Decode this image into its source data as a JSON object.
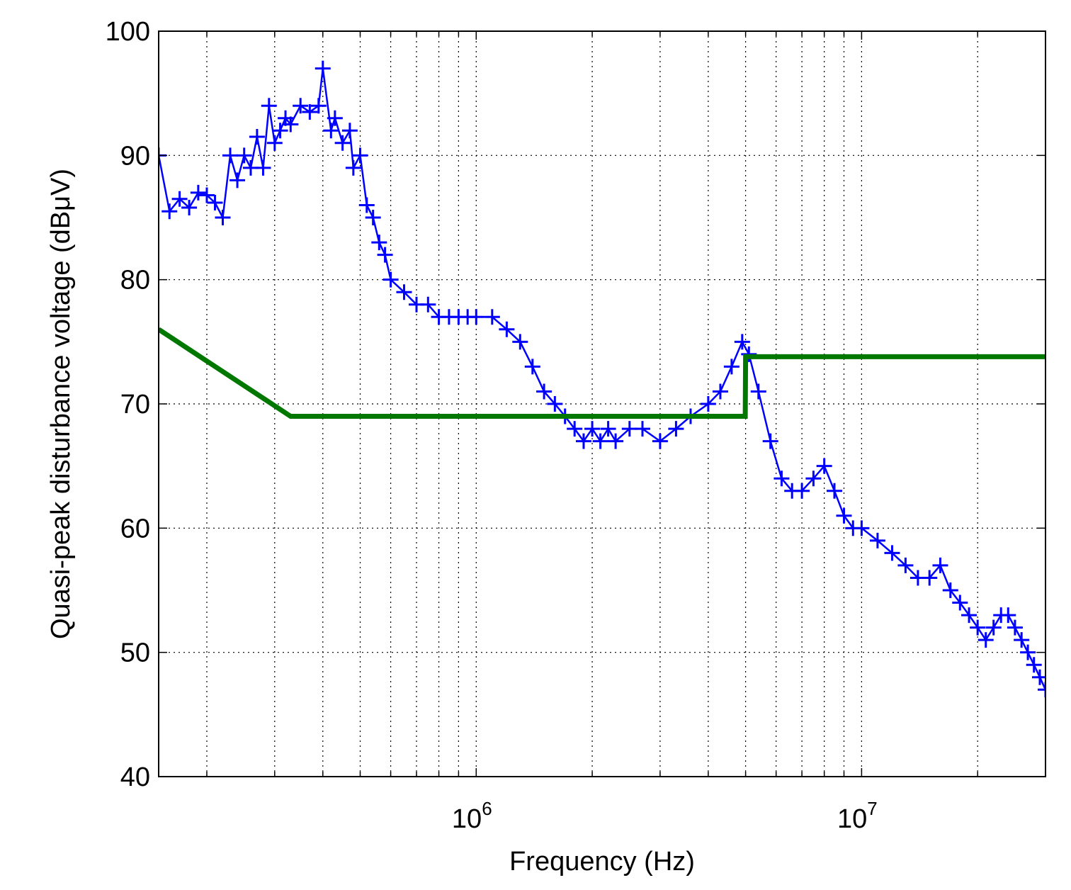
{
  "chart_data": {
    "type": "line",
    "xlabel": "Frequency (Hz)",
    "ylabel": "Quasi-peak disturbance voltage (dBμV)",
    "x_scale": "log",
    "xlim": [
      150000,
      30000000
    ],
    "ylim": [
      40,
      100
    ],
    "grid": true,
    "y_ticks": [
      40,
      50,
      60,
      70,
      80,
      90,
      100
    ],
    "x_ticks": [
      {
        "value": 1000000,
        "base": "10",
        "exp": "6"
      },
      {
        "value": 10000000,
        "base": "10",
        "exp": "7"
      }
    ],
    "series": [
      {
        "color": "#0000ff",
        "marker": "+",
        "x": [
          150000,
          160000,
          170000,
          180000,
          190000,
          200000,
          210000,
          220000,
          230000,
          240000,
          250000,
          260000,
          270000,
          280000,
          290000,
          300000,
          310000,
          320000,
          330000,
          350000,
          370000,
          390000,
          400000,
          420000,
          430000,
          450000,
          470000,
          480000,
          500000,
          520000,
          540000,
          560000,
          580000,
          600000,
          650000,
          700000,
          750000,
          800000,
          850000,
          900000,
          950000,
          1000000,
          1100000,
          1200000,
          1300000,
          1400000,
          1500000,
          1600000,
          1700000,
          1800000,
          1900000,
          2000000,
          2100000,
          2200000,
          2300000,
          2500000,
          2700000,
          3000000,
          3300000,
          3600000,
          4000000,
          4300000,
          4600000,
          4900000,
          5100000,
          5400000,
          5800000,
          6200000,
          6600000,
          7000000,
          7500000,
          8000000,
          8500000,
          9000000,
          9500000,
          10000000,
          11000000,
          12000000,
          13000000,
          14000000,
          15000000,
          16000000,
          17000000,
          18000000,
          19000000,
          20000000,
          21000000,
          22000000,
          23000000,
          24000000,
          25000000,
          26000000,
          27000000,
          28000000,
          29000000,
          30000000
        ],
        "y": [
          90,
          85.5,
          86.5,
          85.8,
          87,
          86.8,
          86.2,
          85,
          90,
          88,
          90,
          89,
          91.5,
          89,
          94,
          91,
          92,
          93,
          92.5,
          94,
          93.5,
          94,
          97,
          92,
          93,
          91,
          92,
          89,
          90,
          86,
          85,
          83,
          82,
          80,
          79,
          78,
          78,
          77,
          77,
          77,
          77,
          77,
          77,
          76,
          75,
          73,
          71,
          70,
          69,
          68,
          67,
          68,
          67,
          68,
          67,
          68,
          68,
          67,
          68,
          69,
          70,
          71,
          73,
          75,
          74,
          71,
          67,
          64,
          63,
          63,
          64,
          65,
          63,
          61,
          60,
          60,
          59,
          58,
          57,
          56,
          56,
          57,
          55,
          54,
          53,
          52,
          51,
          52,
          53,
          53,
          52,
          51,
          50,
          49,
          48,
          47
        ]
      },
      {
        "color": "#007800",
        "x": [
          150000,
          330000,
          500000,
          800000,
          1000000,
          2000000,
          3000000,
          4990000,
          5000000,
          10000000,
          20000000,
          30000000
        ],
        "y": [
          76,
          69,
          69,
          69,
          69,
          69,
          69,
          69,
          73.8,
          73.8,
          73.8,
          73.8
        ]
      }
    ]
  }
}
